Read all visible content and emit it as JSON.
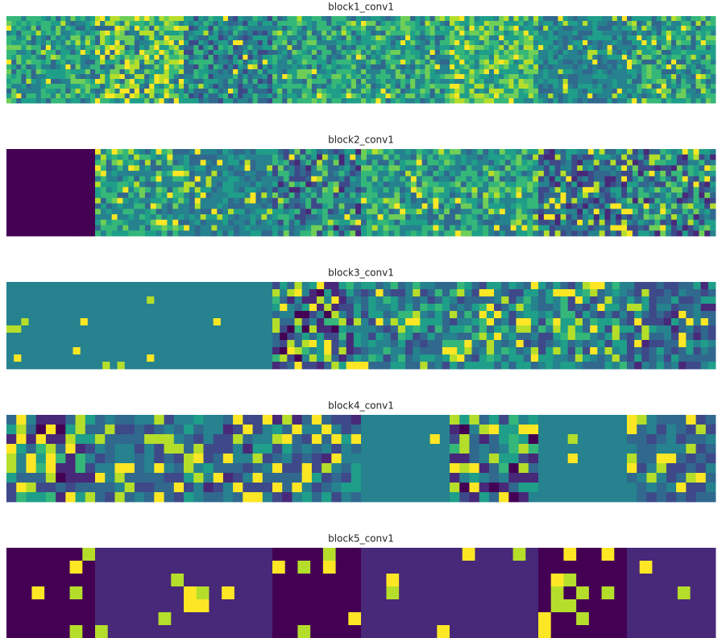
{
  "panels": [
    {
      "title": "block1_conv1"
    },
    {
      "title": "block2_conv1"
    },
    {
      "title": "block3_conv1"
    },
    {
      "title": "block4_conv1"
    },
    {
      "title": "block5_conv1"
    }
  ]
}
